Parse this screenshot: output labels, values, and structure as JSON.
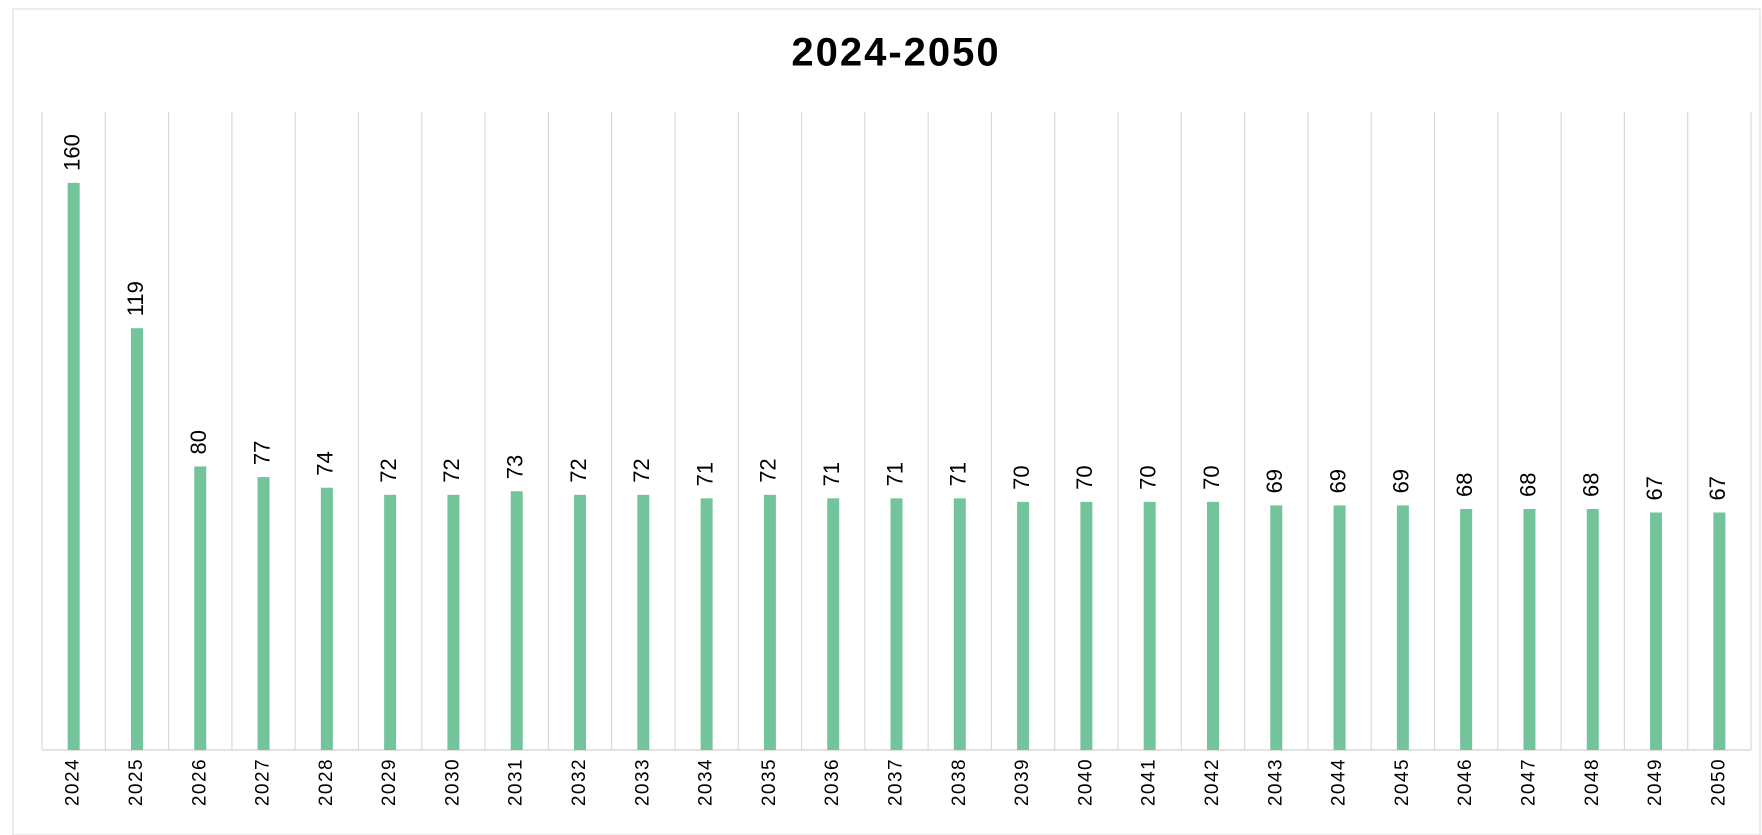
{
  "chart_data": {
    "type": "bar",
    "title": "2024-2050",
    "categories": [
      "2024",
      "2025",
      "2026",
      "2027",
      "2028",
      "2029",
      "2030",
      "2031",
      "2032",
      "2033",
      "2034",
      "2035",
      "2036",
      "2037",
      "2038",
      "2039",
      "2040",
      "2041",
      "2042",
      "2043",
      "2044",
      "2045",
      "2046",
      "2047",
      "2048",
      "2049",
      "2050"
    ],
    "values": [
      160,
      119,
      80,
      77,
      74,
      72,
      72,
      73,
      72,
      72,
      71,
      72,
      71,
      71,
      71,
      70,
      70,
      70,
      70,
      69,
      69,
      69,
      68,
      68,
      68,
      67,
      67
    ],
    "color": "#73c49b",
    "ylim": [
      0,
      180
    ],
    "grid": true
  }
}
